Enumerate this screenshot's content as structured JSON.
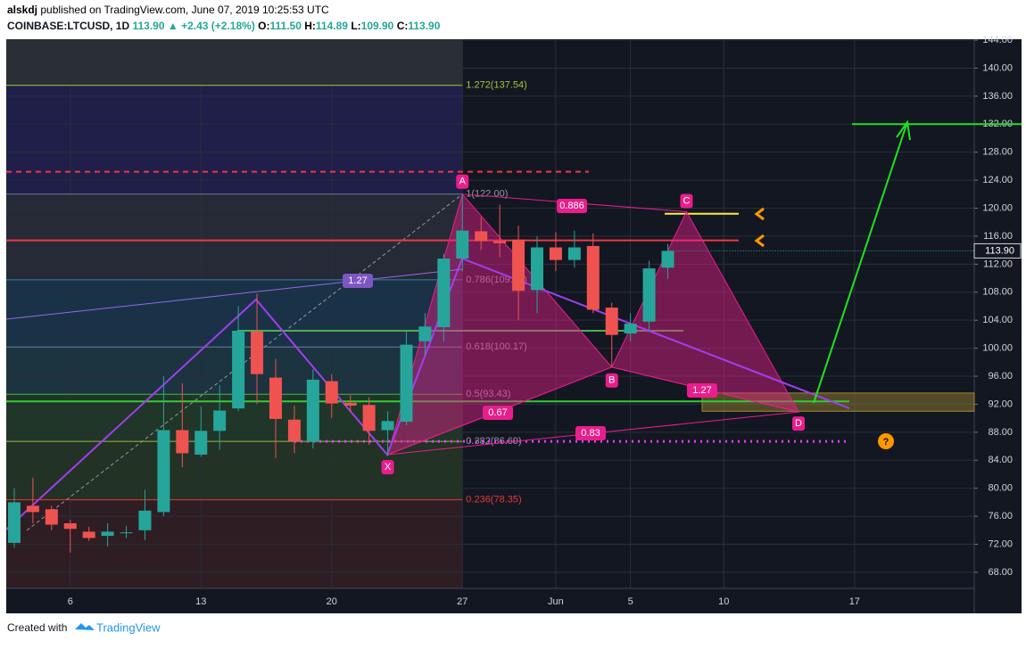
{
  "header": {
    "author": "alskdj",
    "published": "published on TradingView.com, June 07, 2019 10:25:53 UTC",
    "symbol": "COINBASE:LTCUSD, 1D",
    "last": "113.90",
    "change": "+2.43 (+2.18%)",
    "ohlc": [
      {
        "label": "O:",
        "value": "111.50"
      },
      {
        "label": "H:",
        "value": "114.89"
      },
      {
        "label": "L:",
        "value": "109.90"
      },
      {
        "label": "C:",
        "value": "113.90"
      }
    ]
  },
  "footer": {
    "text": "Created with",
    "brand": "TradingView"
  },
  "chart_data": {
    "type": "candlestick",
    "categories": [
      null,
      null,
      null,
      "6",
      null,
      null,
      null,
      null,
      null,
      null,
      "13",
      null,
      null,
      null,
      null,
      null,
      null,
      "20",
      null,
      null,
      null,
      null,
      null,
      null,
      "27",
      null,
      null,
      null,
      null,
      "Jun",
      null,
      null,
      null,
      "5",
      null,
      null,
      null,
      null,
      "10",
      null,
      null,
      null,
      null,
      null,
      null,
      "17",
      null,
      null,
      null,
      null,
      null,
      null
    ],
    "open": [
      72.2,
      77.5,
      77,
      75,
      73.8,
      73.2,
      73.6,
      74,
      76.6,
      88.3,
      84.8,
      88.2,
      91.4,
      102.4,
      95.8,
      89.8,
      86.7,
      95.3,
      92.2,
      91.9,
      88.3,
      89.5,
      101,
      103,
      112.8,
      116.7,
      115.3,
      115.5,
      108.3,
      114.4,
      112.6,
      114.6,
      105.8,
      102.1,
      103.8,
      111.5,
      null,
      null,
      null,
      null,
      null,
      null,
      null,
      null,
      null,
      null,
      null,
      null,
      null,
      null,
      null,
      null
    ],
    "high": [
      80,
      81.5,
      77.5,
      75.5,
      74.5,
      75,
      74.6,
      79.8,
      96,
      95,
      91.7,
      94.7,
      106,
      107.8,
      98.5,
      91.8,
      97,
      96.3,
      93.3,
      93,
      91,
      102.4,
      105,
      113.5,
      122,
      118.7,
      120.5,
      117.5,
      116,
      116.6,
      116.8,
      116.4,
      106.5,
      105,
      112.5,
      114.89,
      null,
      null,
      null,
      null,
      null,
      null,
      null,
      null,
      null,
      null,
      null,
      null,
      null,
      null,
      null,
      null
    ],
    "low": [
      71.5,
      75,
      74,
      70.8,
      72.5,
      71.7,
      72.9,
      72.6,
      76,
      83,
      84.5,
      85.5,
      91,
      92,
      84.3,
      85,
      85.7,
      90,
      90.9,
      86.2,
      84.6,
      89,
      99,
      101,
      111,
      114,
      113,
      104,
      105,
      111,
      111.5,
      105,
      97.3,
      101,
      102.5,
      109.9,
      null,
      null,
      null,
      null,
      null,
      null,
      null,
      null,
      null,
      null,
      null,
      null,
      null,
      null,
      null,
      null
    ],
    "close": [
      78,
      76.6,
      74.8,
      74.2,
      72.9,
      73.8,
      73.7,
      76.8,
      88.3,
      85,
      88.2,
      91.1,
      102.5,
      96.3,
      89.9,
      86.7,
      95.5,
      92.1,
      91.8,
      88.2,
      89.6,
      100.5,
      103.1,
      112.8,
      116.8,
      115.3,
      115,
      108.2,
      114.4,
      112.6,
      114.4,
      105.5,
      101.9,
      103.5,
      111.4,
      113.9,
      null,
      null,
      null,
      null,
      null,
      null,
      null,
      null,
      null,
      null,
      null,
      null,
      null,
      null,
      null,
      null
    ],
    "up_color": "#26a69a",
    "down_color": "#ef5350",
    "ylim": [
      65.7,
      144.13
    ],
    "yticks": [
      {
        "value": 144,
        "label": "144.00"
      },
      {
        "value": 140,
        "label": "140.00"
      },
      {
        "value": 136,
        "label": "136.00"
      },
      {
        "value": 132,
        "label": "132.00"
      },
      {
        "value": 128,
        "label": "128.00"
      },
      {
        "value": 124,
        "label": "124.00"
      },
      {
        "value": 120,
        "label": "120.00"
      },
      {
        "value": 116,
        "label": "116.00"
      },
      {
        "value": 112,
        "label": "112.00"
      },
      {
        "value": 108,
        "label": "108.00"
      },
      {
        "value": 104,
        "label": "104.00"
      },
      {
        "value": 100,
        "label": "100.00"
      },
      {
        "value": 96,
        "label": "96.00"
      },
      {
        "value": 92,
        "label": "92.00"
      },
      {
        "value": 88,
        "label": "88.00"
      },
      {
        "value": 84,
        "label": "84.00"
      },
      {
        "value": 80,
        "label": "80.00"
      },
      {
        "value": 76,
        "label": "76.00"
      },
      {
        "value": 72,
        "label": "72.00"
      },
      {
        "value": 68,
        "label": "68.00"
      }
    ],
    "last_price": {
      "value": 113.9,
      "label": "113.90"
    },
    "grid": true,
    "fib_levels": [
      {
        "value": 137.54,
        "label": "1.272(137.54)",
        "color": "#a5c43a",
        "fill": "#1f1f4a"
      },
      {
        "value": 122,
        "label": "1(122.00)",
        "color": "#787b86",
        "fill": "#262a36"
      },
      {
        "value": 109.77,
        "label": "0.786(109.77)",
        "color": "#3d7fa8",
        "fill": "#1a3247"
      },
      {
        "value": 100.17,
        "label": "0.618(100.17)",
        "color": "#5b8aa0",
        "fill": "#1c3340"
      },
      {
        "value": 93.43,
        "label": "0.5(93.43)",
        "color": "#4caf50",
        "fill": "#203628"
      },
      {
        "value": 86.69,
        "label": "0.382(86.69)",
        "color": "#9ab847",
        "fill": "#223224"
      },
      {
        "value": 78.35,
        "label": "0.236(78.35)",
        "color": "#e53935",
        "fill": "#2e1e24"
      }
    ],
    "fib_top_fill": "#2a2f36",
    "horizontal_lines": [
      {
        "value": 125.2,
        "color": "#f23645",
        "style": "dashed"
      },
      {
        "value": 115.4,
        "color": "#f23645",
        "style": "solid"
      },
      {
        "value": 102.5,
        "color": "#4caf50",
        "style": "solid"
      },
      {
        "value": 92.4,
        "color": "#32cd32",
        "style": "solid"
      },
      {
        "value": 86.7,
        "color": "#e040fb",
        "style": "dotted"
      },
      {
        "value": 119.2,
        "color": "#ffeb3b",
        "style": "solid"
      },
      {
        "value": 132,
        "color": "#22e022",
        "style": "solid"
      }
    ],
    "prz": {
      "high": 93.6,
      "low": 91,
      "color": "#a08a30"
    },
    "pattern": {
      "points": [
        {
          "name": "X",
          "x": 20,
          "value": 84.8
        },
        {
          "name": "A",
          "x": 24,
          "value": 122
        },
        {
          "name": "B",
          "x": 32,
          "value": 97.3
        },
        {
          "name": "C",
          "x": 36,
          "value": 119.5
        },
        {
          "name": "D",
          "x": 42,
          "value": 90.9
        }
      ],
      "ratios": [
        1.27,
        0.886,
        0.67,
        0.83,
        1.27
      ],
      "color": "#e91e8c"
    },
    "question": "?"
  }
}
